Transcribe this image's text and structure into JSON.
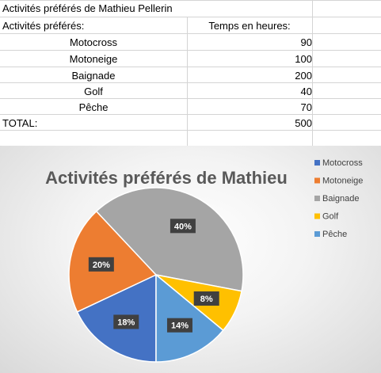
{
  "sheet": {
    "title": "Activités préférés de Mathieu Pellerin",
    "header_activity": "Activités préférés:",
    "header_time": "Temps en heures:",
    "rows": [
      {
        "activity": "Motocross",
        "hours": "90"
      },
      {
        "activity": "Motoneige",
        "hours": "100"
      },
      {
        "activity": "Baignade",
        "hours": "200"
      },
      {
        "activity": "Golf",
        "hours": "40"
      },
      {
        "activity": "Pêche",
        "hours": "70"
      }
    ],
    "total_label": "TOTAL:",
    "total_value": "500"
  },
  "chart_data": {
    "type": "pie",
    "title": "Activités préférés de Mathieu",
    "categories": [
      "Motocross",
      "Motoneige",
      "Baignade",
      "Golf",
      "Pêche"
    ],
    "values": [
      90,
      100,
      200,
      40,
      70
    ],
    "percent_labels": [
      "18%",
      "20%",
      "40%",
      "8%",
      "14%"
    ],
    "colors": [
      "#4472c4",
      "#ed7d31",
      "#a5a5a5",
      "#ffc000",
      "#5b9bd5"
    ],
    "legend_position": "right"
  }
}
